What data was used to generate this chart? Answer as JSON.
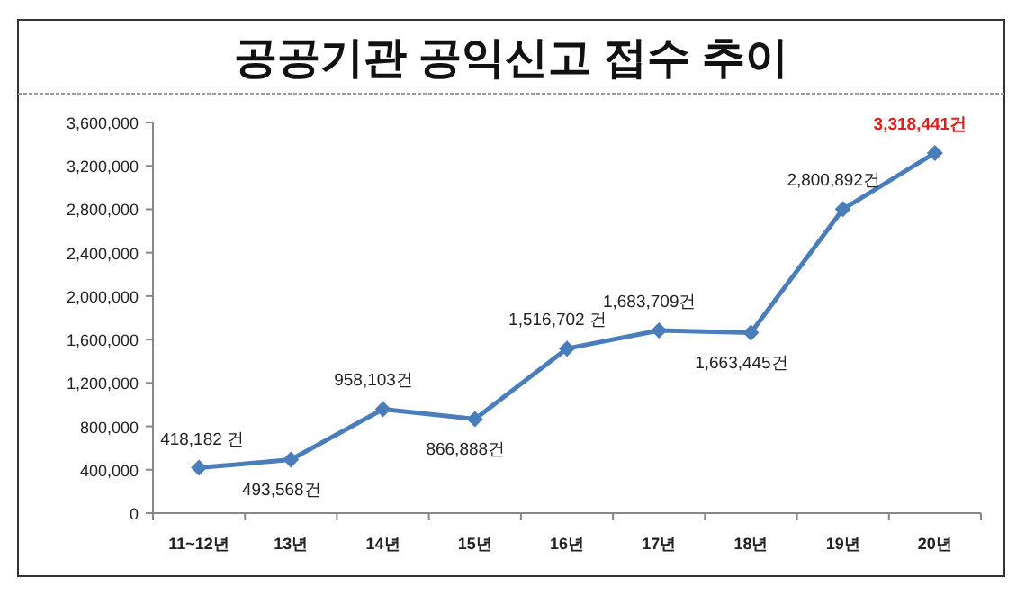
{
  "chart_data": {
    "type": "line",
    "title": "공공기관 공익신고 접수 추이",
    "categories": [
      "11~12년",
      "13년",
      "14년",
      "15년",
      "16년",
      "17년",
      "18년",
      "19년",
      "20년"
    ],
    "series": [
      {
        "color": "#4a7ebb",
        "values": [
          418182,
          493568,
          958103,
          866888,
          1516702,
          1683709,
          1663445,
          2800892,
          3318441
        ],
        "value_labels": [
          "418,182 건",
          "493,568건",
          "958,103건",
          "866,888건",
          "1,516,702 건",
          "1,683,709건",
          "1,663,445건",
          "2,800,892건",
          "3,318,441건"
        ]
      }
    ],
    "ylim": [
      0,
      3600000
    ],
    "yticks": [
      {
        "value": 0,
        "label": "0"
      },
      {
        "value": 400000,
        "label": "400,000"
      },
      {
        "value": 800000,
        "label": "800,000"
      },
      {
        "value": 1200000,
        "label": "1,200,000"
      },
      {
        "value": 1600000,
        "label": "1,600,000"
      },
      {
        "value": 2000000,
        "label": "2,000,000"
      },
      {
        "value": 2400000,
        "label": "2,400,000"
      },
      {
        "value": 2800000,
        "label": "2,800,000"
      },
      {
        "value": 3200000,
        "label": "3,200,000"
      },
      {
        "value": 3600000,
        "label": "3,600,000"
      }
    ],
    "grid": false,
    "marker": "diamond",
    "line_style": "solid"
  }
}
